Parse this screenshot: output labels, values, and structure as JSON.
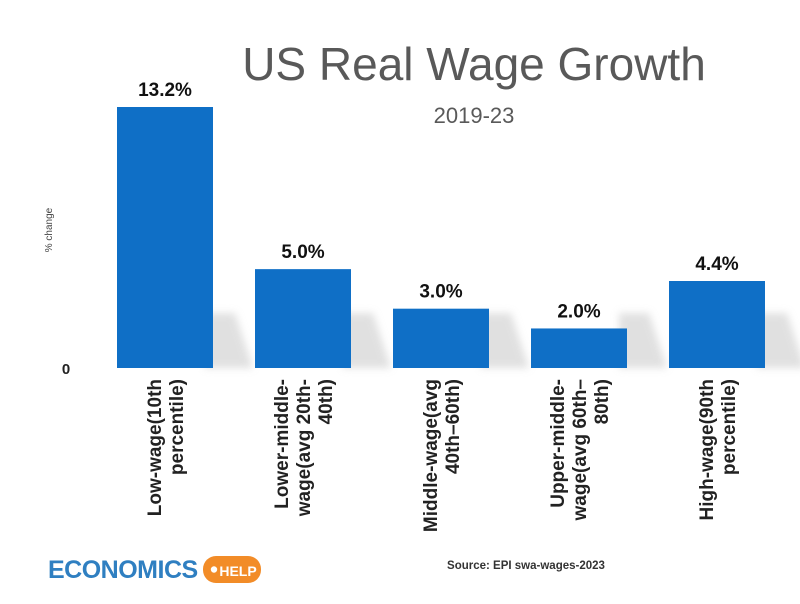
{
  "chart_data": {
    "type": "bar",
    "title": "US Real Wage Growth",
    "subtitle": "2019-23",
    "ylabel": "% change",
    "ytick_zero": "0",
    "ylim": [
      0,
      13.2
    ],
    "categories": [
      [
        "Low-wage(10th",
        "percentile)"
      ],
      [
        "Lower-middle-",
        "wage(avg 20th-",
        "40th)"
      ],
      [
        "Middle-wage(avg",
        "40th–60th)"
      ],
      [
        "Upper-middle-",
        "wage(avg 60th–",
        "80th)"
      ],
      [
        "High-wage(90th",
        "percentile)"
      ]
    ],
    "values": [
      13.2,
      5.0,
      3.0,
      2.0,
      4.4
    ],
    "data_labels": [
      "13.2%",
      "5.0%",
      "3.0%",
      "2.0%",
      "4.4%"
    ],
    "source": "Source: EPI swa-wages-2023"
  },
  "logo": {
    "word": "ECONOMICS",
    "tag": "HELP"
  },
  "colors": {
    "bar": "#0f6fc6",
    "title": "#595959",
    "logo_blue": "#2f7fc1",
    "logo_orange": "#f28c28"
  }
}
